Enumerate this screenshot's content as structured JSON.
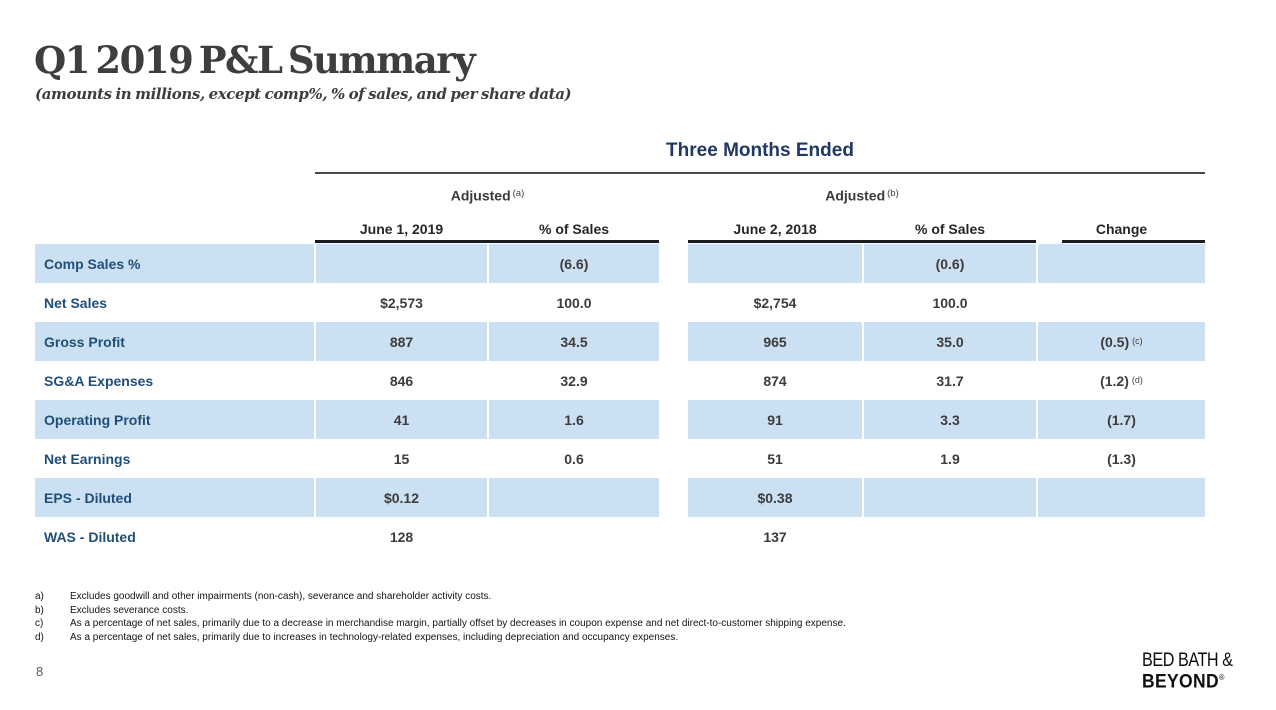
{
  "slide": {
    "title": "Q1 2019 P&L Summary",
    "subtitle": "(amounts in millions, except comp%, % of sales, and per share data)",
    "page_number": "8"
  },
  "table": {
    "title": "Three Months Ended",
    "group_headers": [
      {
        "label": "Adjusted",
        "sup": "(a)"
      },
      {
        "label": "Adjusted",
        "sup": "(b)"
      }
    ],
    "columns": [
      "June 1, 2019",
      "% of Sales",
      "June 2, 2018",
      "% of Sales",
      "Change"
    ],
    "rows": [
      {
        "label": "Comp Sales %",
        "cells": [
          "",
          "(6.6)",
          "",
          "(0.6)",
          ""
        ],
        "change_sup": "",
        "shaded": true
      },
      {
        "label": "Net Sales",
        "cells": [
          "$2,573",
          "100.0",
          "$2,754",
          "100.0",
          ""
        ],
        "change_sup": "",
        "shaded": false
      },
      {
        "label": "Gross Profit",
        "cells": [
          "887",
          "34.5",
          "965",
          "35.0",
          "(0.5)"
        ],
        "change_sup": "(c)",
        "shaded": true
      },
      {
        "label": "SG&A Expenses",
        "cells": [
          "846",
          "32.9",
          "874",
          "31.7",
          "(1.2)"
        ],
        "change_sup": "(d)",
        "shaded": false
      },
      {
        "label": "Operating Profit",
        "cells": [
          "41",
          "1.6",
          "91",
          "3.3",
          "(1.7)"
        ],
        "change_sup": "",
        "shaded": true
      },
      {
        "label": "Net Earnings",
        "cells": [
          "15",
          "0.6",
          "51",
          "1.9",
          "(1.3)"
        ],
        "change_sup": "",
        "shaded": false
      },
      {
        "label": "EPS - Diluted",
        "cells": [
          "$0.12",
          "",
          "$0.38",
          "",
          ""
        ],
        "change_sup": "",
        "shaded": true
      },
      {
        "label": "WAS - Diluted",
        "cells": [
          "128",
          "",
          "137",
          "",
          ""
        ],
        "change_sup": "",
        "shaded": false
      }
    ]
  },
  "footnotes": [
    {
      "marker": "a)",
      "text": "Excludes goodwill and other impairments (non-cash), severance and shareholder activity costs."
    },
    {
      "marker": "b)",
      "text": "Excludes severance costs."
    },
    {
      "marker": "c)",
      "text": "As a percentage of net sales, primarily due to a decrease in merchandise margin, partially offset by decreases in coupon expense and net direct-to-customer shipping expense."
    },
    {
      "marker": "d)",
      "text": "As a percentage of net sales, primarily due to increases in technology-related expenses, including depreciation and occupancy expenses."
    }
  ],
  "logo": {
    "line1": "BED BATH &",
    "line2": "BEYOND",
    "reg": "®"
  },
  "colors": {
    "row_shade": "#CBE1F3",
    "navy_heading": "#1F3864",
    "row_label_blue": "#1F4E79",
    "value_text": "#3f3b3b",
    "rule_dark": "#1b1b24",
    "title_gray": "#3e3e3e"
  }
}
